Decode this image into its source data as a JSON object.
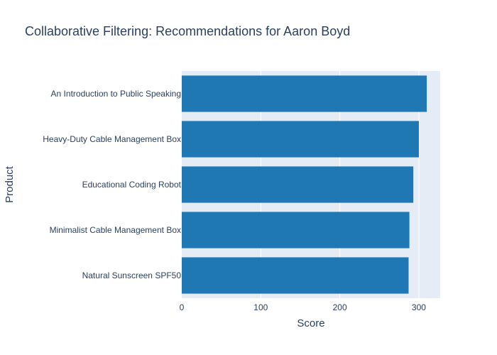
{
  "chart_data": {
    "type": "bar",
    "orientation": "horizontal",
    "title": "Collaborative Filtering: Recommendations for Aaron Boyd",
    "xlabel": "Score",
    "ylabel": "Product",
    "categories": [
      "An Introduction to Public Speaking",
      "Heavy-Duty Cable Management Box",
      "Educational Coding Robot",
      "Minimalist Cable Management Box",
      "Natural Sunscreen SPF50"
    ],
    "values": [
      310,
      300,
      293,
      288,
      287
    ],
    "xlim": [
      0,
      327
    ],
    "xticks": [
      "0",
      "100",
      "200",
      "300"
    ],
    "grid": true,
    "colors": {
      "bar": "#1f77b4",
      "plot_bg": "#e5ecf6",
      "grid": "#ffffff",
      "text": "#2a3f5f"
    }
  }
}
